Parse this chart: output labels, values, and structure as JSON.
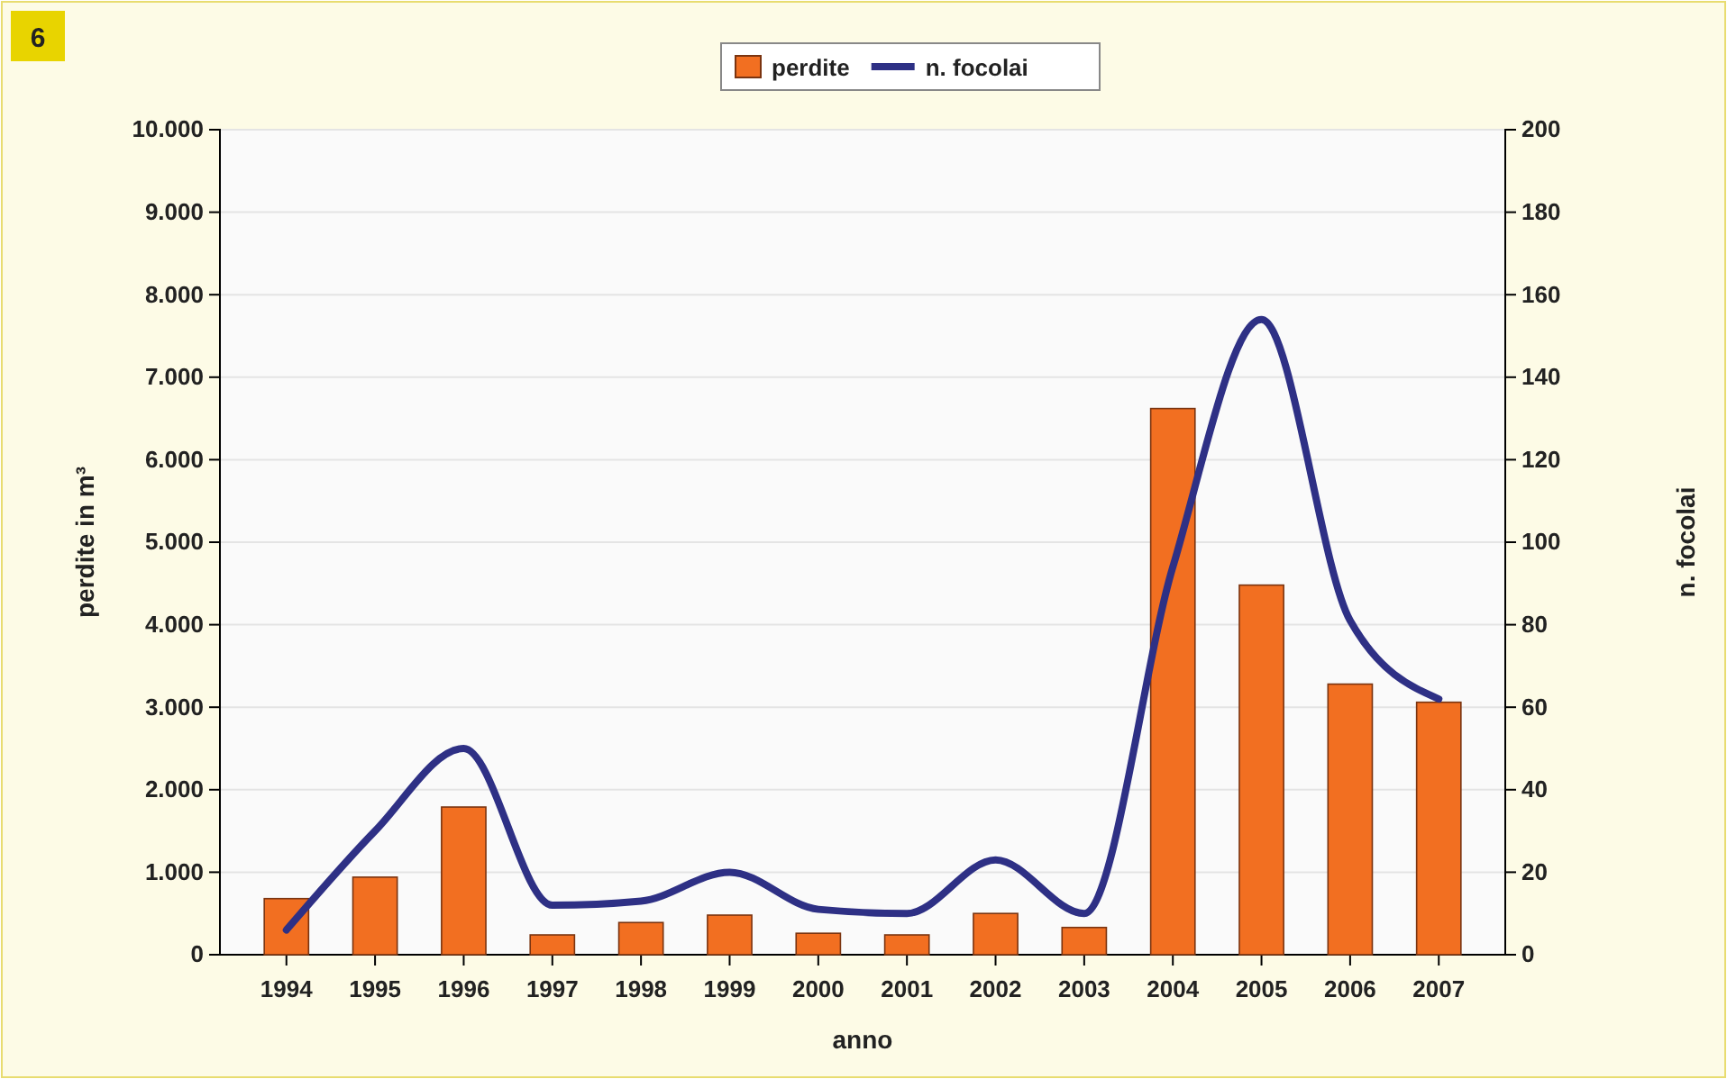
{
  "chart_data": {
    "type": "bar",
    "xlabel": "anno",
    "ylabel": "perdite in m³",
    "y2label": "n. focolai",
    "annotations": [
      "6"
    ],
    "categories": [
      "1994",
      "1995",
      "1996",
      "1997",
      "1998",
      "1999",
      "2000",
      "2001",
      "2002",
      "2003",
      "2004",
      "2005",
      "2006",
      "2007"
    ],
    "series": [
      {
        "name": "perdite",
        "color": "#f26f21",
        "values": [
          680,
          940,
          1790,
          240,
          390,
          480,
          260,
          240,
          500,
          330,
          6620,
          4480,
          3280,
          3060
        ]
      },
      {
        "name": "n. focolai",
        "type": "line",
        "axis": "y2",
        "color": "#2e3085",
        "values": [
          6,
          30,
          50,
          12,
          13,
          20,
          11,
          10,
          23,
          10,
          94,
          154,
          81,
          62
        ]
      }
    ],
    "ylim": [
      0,
      10000
    ],
    "yticks": [
      0,
      {
        "value": 1000,
        "label": "1.000"
      },
      {
        "value": 2000,
        "label": "2.000"
      },
      {
        "value": 3000,
        "label": "3.000"
      },
      {
        "value": 4000,
        "label": "4.000"
      },
      {
        "value": 5000,
        "label": "5.000"
      },
      {
        "value": 6000,
        "label": "6.000"
      },
      {
        "value": 7000,
        "label": "7.000"
      },
      {
        "value": 8000,
        "label": "8.000"
      },
      {
        "value": 9000,
        "label": "9.000"
      },
      {
        "value": 10000,
        "label": "10.000"
      }
    ],
    "y2lim": [
      0,
      200
    ],
    "y2ticks": [
      0,
      20,
      40,
      60,
      80,
      100,
      120,
      140,
      160,
      180,
      200
    ],
    "grid": "y",
    "legend": "top",
    "marker": "none",
    "line_style": "solid"
  }
}
